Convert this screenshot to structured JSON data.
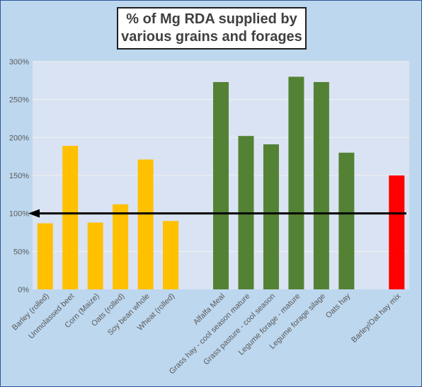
{
  "chart_data": {
    "type": "bar",
    "title": {
      "line1": "% of Mg RDA supplied by",
      "line2": "various grains and forages"
    },
    "xlabel": "",
    "ylabel": "",
    "ylim": [
      0,
      300
    ],
    "y_ticks": [
      {
        "value": 0,
        "label": "0%"
      },
      {
        "value": 50,
        "label": "50%"
      },
      {
        "value": 100,
        "label": "100%"
      },
      {
        "value": 150,
        "label": "150%"
      },
      {
        "value": 200,
        "label": "200%"
      },
      {
        "value": 250,
        "label": "250%"
      },
      {
        "value": 300,
        "label": "300%"
      }
    ],
    "grid": true,
    "legend": "none",
    "reference_line": {
      "value": 100,
      "color": "#000000",
      "arrow": "left"
    },
    "categories": [
      "Barley (rolled)",
      "Unmolassed beet",
      "Corn (Maize)",
      "Oats (rolled)",
      "Soy bean whole",
      "Wheat (rolled)",
      "",
      "Alfalfa Meal",
      "Grass hay - cool season mature",
      "Grass pasture - cool season",
      "Legume forage - mature",
      "Legume forage silage",
      "Oats hay",
      "",
      "Barley/Oat hay mix"
    ],
    "values": [
      87,
      189,
      88,
      112,
      171,
      90,
      null,
      273,
      202,
      191,
      280,
      273,
      180,
      null,
      150
    ],
    "bar_colors": [
      "#ffc000",
      "#ffc000",
      "#ffc000",
      "#ffc000",
      "#ffc000",
      "#ffc000",
      "",
      "#548235",
      "#548235",
      "#548235",
      "#548235",
      "#548235",
      "#548235",
      "",
      "#ff0000"
    ],
    "colors": {
      "frame_background": "#bdd7ee",
      "plot_background": "#dae3f3",
      "gridline": "#f2f2f2",
      "grain": "#ffc000",
      "forage": "#548235",
      "mix": "#ff0000"
    }
  }
}
